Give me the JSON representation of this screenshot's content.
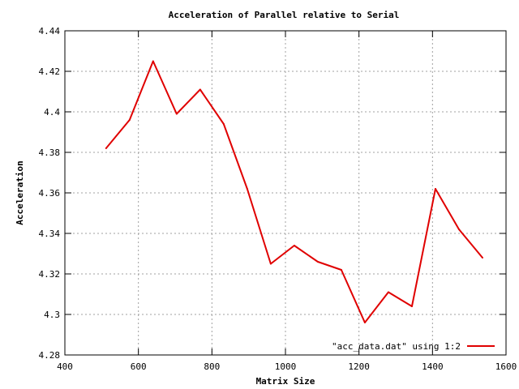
{
  "chart_data": {
    "type": "line",
    "title": "Acceleration of Parallel relative to Serial",
    "xlabel": "Matrix Size",
    "ylabel": "Acceleration",
    "xlim": [
      400,
      1600
    ],
    "ylim": [
      4.28,
      4.44
    ],
    "x_ticks": [
      400,
      600,
      800,
      1000,
      1200,
      1400,
      1600
    ],
    "x_tick_labels": [
      "400",
      "600",
      "800",
      "1000",
      "1200",
      "1400",
      "1600"
    ],
    "y_ticks": [
      4.28,
      4.3,
      4.32,
      4.34,
      4.36,
      4.38,
      4.4,
      4.42,
      4.44
    ],
    "y_tick_labels": [
      "4.28",
      "4.3",
      "4.32",
      "4.34",
      "4.36",
      "4.38",
      "4.4",
      "4.42",
      "4.44"
    ],
    "grid": true,
    "legend_position": "bottom-right",
    "series": [
      {
        "name": "\"acc_data.dat\" using 1:2",
        "color": "#e00000",
        "x": [
          512,
          576,
          640,
          704,
          768,
          832,
          896,
          960,
          1024,
          1088,
          1152,
          1216,
          1280,
          1344,
          1408,
          1472,
          1536
        ],
        "y": [
          4.382,
          4.396,
          4.425,
          4.399,
          4.411,
          4.394,
          4.362,
          4.325,
          4.334,
          4.326,
          4.322,
          4.296,
          4.311,
          4.304,
          4.362,
          4.342,
          4.328
        ]
      }
    ]
  }
}
